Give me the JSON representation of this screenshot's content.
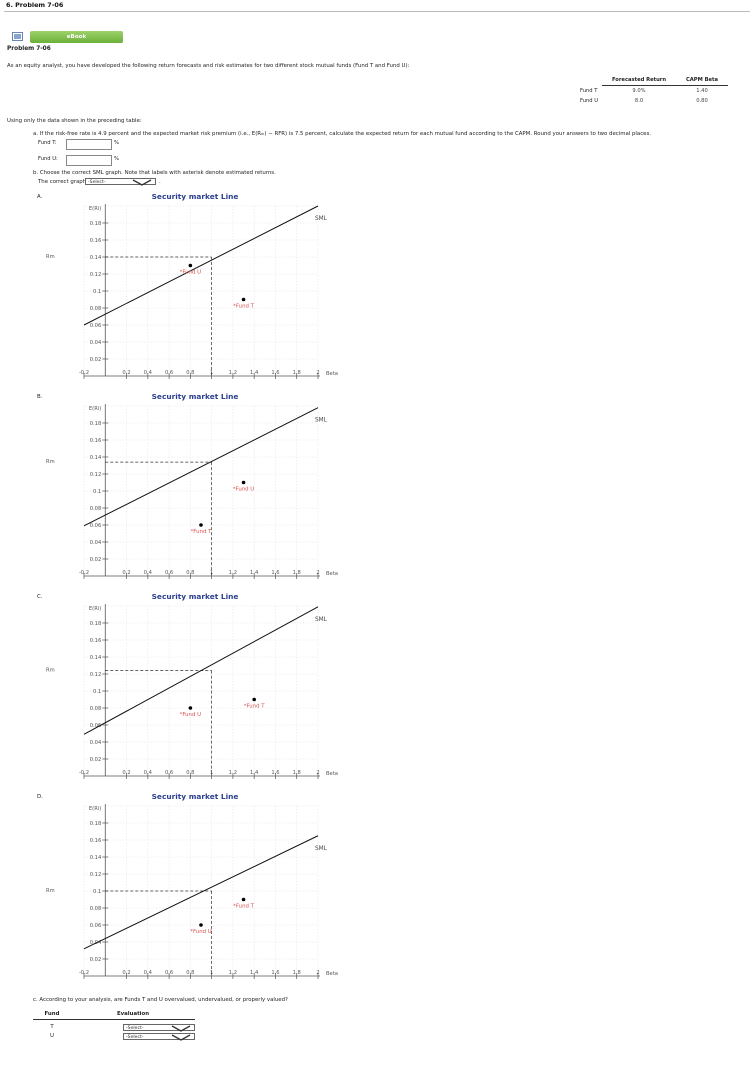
{
  "header": {
    "problem_number": "6. Problem 7-06",
    "ebook_label": "eBook",
    "problem_title": "Problem 7-06"
  },
  "intro": "As an equity analyst, you have developed the following return forecasts and risk estimates for two different stock mutual funds (Fund T and Fund U):",
  "forecast_table": {
    "headers": [
      "",
      "Forecasted Return",
      "CAPM Beta"
    ],
    "rows": [
      {
        "fund": "Fund T",
        "return": "9.0%",
        "beta": "1.40"
      },
      {
        "fund": "Fund U",
        "return": "8.0",
        "beta": "0.80"
      }
    ]
  },
  "using_text": "Using only the data shown in the preceding table:",
  "part_a": {
    "text": "a. If the risk-free rate is 4.9 percent and the expected market risk premium (i.e., E(Rₘ) − RFR) is 7.5 percent, calculate the expected return for each mutual fund according to the CAPM. Round your answers to two decimal places.",
    "fund_t_label": "Fund T:",
    "fund_u_label": "Fund U:",
    "unit": "%",
    "fund_t_value": "",
    "fund_u_value": ""
  },
  "part_b": {
    "text": "b. Choose the correct SML graph. Note that labels with asterisk denote estimated returns.",
    "correct_prefix": "The correct graph is",
    "select_value": "-Select-",
    "period": "."
  },
  "graph_common": {
    "title": "Security market Line",
    "y_axis_label": "E(Ri)",
    "rm_label": "Rm",
    "sml_label": "SML",
    "x_axis_label": "Beta",
    "x_ticks": [
      "-0.2",
      "0.2",
      "0.4",
      "0.6",
      "0.8",
      "1",
      "1.2",
      "1.4",
      "1.6",
      "1.8",
      "2"
    ],
    "y_ticks": [
      "0.18",
      "0.16",
      "0.14",
      "0.12",
      "0.1",
      "0.08",
      "0.06",
      "0.04",
      "0.02"
    ]
  },
  "chart_data": [
    {
      "type": "scatter",
      "option": "A.",
      "title": "Security market Line",
      "xlabel": "Beta",
      "ylabel": "E(Ri)",
      "xlim": [
        -0.2,
        2.0
      ],
      "ylim": [
        0,
        0.2
      ],
      "rm": [
        1,
        0.14
      ],
      "sml": {
        "label": "SML",
        "x": [
          -0.2,
          2.0
        ],
        "y": [
          0.06,
          0.2
        ]
      },
      "points": [
        {
          "label": "*Fund U",
          "x": 0.8,
          "y": 0.13
        },
        {
          "label": "*Fund T",
          "x": 1.3,
          "y": 0.09
        }
      ]
    },
    {
      "type": "scatter",
      "option": "B.",
      "title": "Security market Line",
      "xlabel": "Beta",
      "ylabel": "E(Ri)",
      "xlim": [
        -0.2,
        2.0
      ],
      "ylim": [
        0,
        0.2
      ],
      "rm": [
        1,
        0.134
      ],
      "sml": {
        "label": "SML",
        "x": [
          -0.2,
          2.0
        ],
        "y": [
          0.059,
          0.198
        ]
      },
      "points": [
        {
          "label": "*Fund U",
          "x": 1.3,
          "y": 0.11
        },
        {
          "label": "*Fund T",
          "x": 0.9,
          "y": 0.06
        }
      ]
    },
    {
      "type": "scatter",
      "option": "C.",
      "title": "Security market Line",
      "xlabel": "Beta",
      "ylabel": "E(Ri)",
      "xlim": [
        -0.2,
        2.0
      ],
      "ylim": [
        0,
        0.2
      ],
      "rm": [
        1,
        0.124
      ],
      "sml": {
        "label": "SML",
        "x": [
          -0.2,
          2.0
        ],
        "y": [
          0.049,
          0.199
        ]
      },
      "points": [
        {
          "label": "*Fund U",
          "x": 0.8,
          "y": 0.08
        },
        {
          "label": "*Fund T",
          "x": 1.4,
          "y": 0.09
        }
      ]
    },
    {
      "type": "scatter",
      "option": "D.",
      "title": "Security market Line",
      "xlabel": "Beta",
      "ylabel": "E(Ri)",
      "xlim": [
        -0.2,
        2.0
      ],
      "ylim": [
        0,
        0.2
      ],
      "rm": [
        1,
        0.1
      ],
      "sml": {
        "label": "SML",
        "x": [
          -0.2,
          2.0
        ],
        "y": [
          0.032,
          0.165
        ]
      },
      "points": [
        {
          "label": "*Fund T",
          "x": 1.3,
          "y": 0.09
        },
        {
          "label": "*Fund U",
          "x": 0.9,
          "y": 0.06
        }
      ]
    }
  ],
  "part_c": {
    "text": "c. According to your analysis, are Funds T and U overvalued, undervalued, or properly valued?",
    "headers": [
      "Fund",
      "Evaluation"
    ],
    "rows": [
      {
        "fund": "T",
        "select": "-Select-"
      },
      {
        "fund": "U",
        "select": "-Select-"
      }
    ]
  }
}
